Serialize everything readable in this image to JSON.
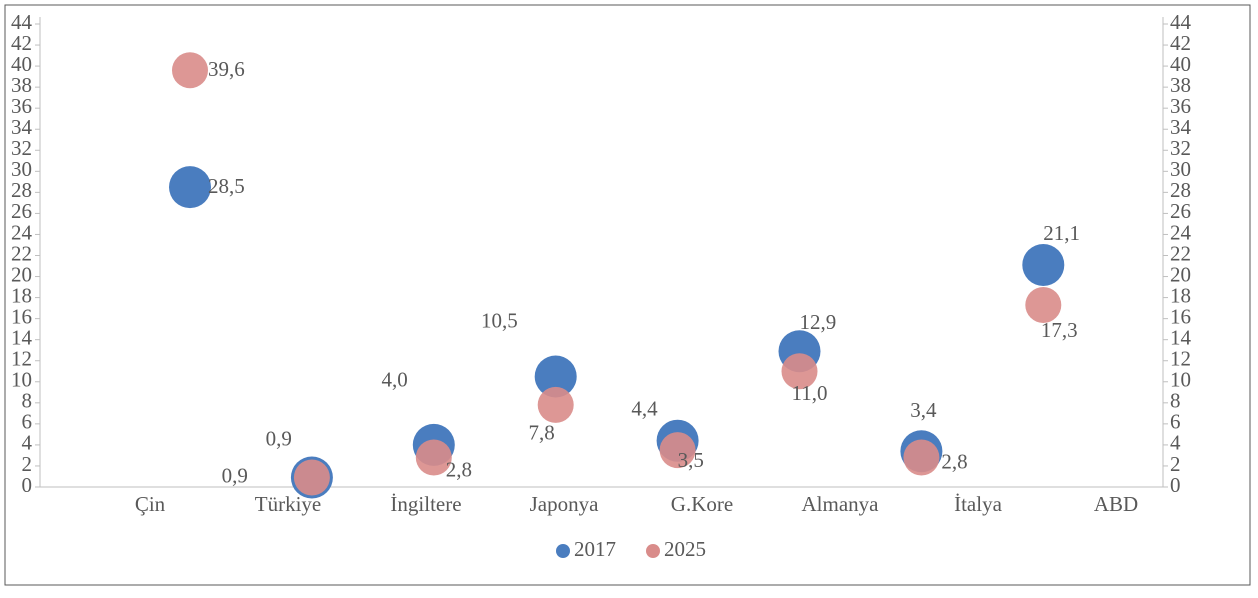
{
  "chart_data": {
    "type": "bubble",
    "categories": [
      "Çin",
      "Türkiye",
      "İngiltere",
      "Japonya",
      "G.Kore",
      "Almanya",
      "İtalya",
      "ABD"
    ],
    "series": [
      {
        "name": "2017",
        "color": "#4a7dbf",
        "values": [
          28.5,
          0.9,
          4.0,
          10.5,
          4.4,
          12.9,
          3.4,
          21.1
        ],
        "value_labels": [
          "28,5",
          "0,9",
          "4,0",
          "10,5",
          "4,4",
          "12,9",
          "3,4",
          "21,1"
        ]
      },
      {
        "name": "2025",
        "color": "#d98c8a",
        "values": [
          39.6,
          0.9,
          2.8,
          7.8,
          3.5,
          11.0,
          2.8,
          17.3
        ],
        "value_labels": [
          "39,6",
          "0,9",
          "2,8",
          "7,8",
          "3,5",
          "11,0",
          "2,8",
          "17,3"
        ]
      }
    ],
    "ylim": [
      0,
      44
    ],
    "yticks": [
      0,
      2,
      4,
      6,
      8,
      10,
      12,
      14,
      16,
      18,
      20,
      22,
      24,
      26,
      28,
      30,
      32,
      34,
      36,
      38,
      40,
      42,
      44
    ],
    "y2lim": [
      0,
      44
    ],
    "y2ticks": [
      0,
      2,
      4,
      6,
      8,
      10,
      12,
      14,
      16,
      18,
      20,
      22,
      24,
      26,
      28,
      30,
      32,
      34,
      36,
      38,
      40,
      42,
      44
    ],
    "legend": "bottom"
  }
}
